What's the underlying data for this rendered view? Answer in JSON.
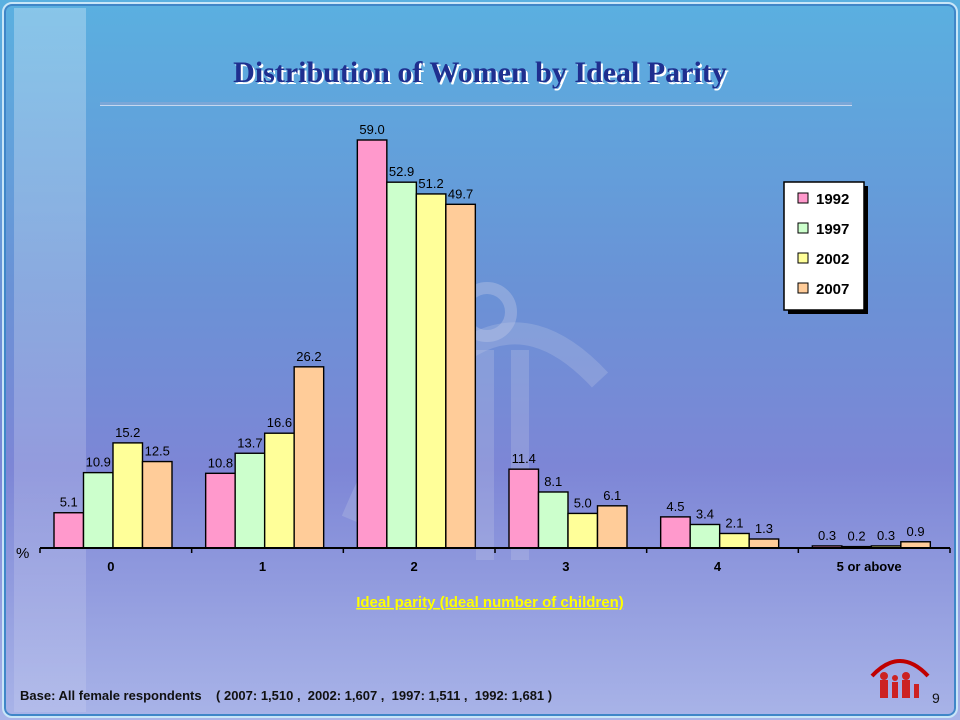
{
  "slide": {
    "title": "Distribution of Women by Ideal Parity",
    "footer": "Base: All female respondents    ( 2007: 1,510 ,  2002: 1,607 ,  1997: 1,511 ,  1992: 1,681 )",
    "page_number": "9"
  },
  "chart_data": {
    "type": "bar",
    "title": "Distribution of Women by Ideal Parity",
    "xlabel": "Ideal parity (Ideal number of children)",
    "ylabel": "%",
    "categories": [
      "0",
      "1",
      "2",
      "3",
      "4",
      "5 or above"
    ],
    "series": [
      {
        "name": "1992",
        "color": "#ff99cc",
        "values": [
          5.1,
          10.8,
          59.0,
          11.4,
          4.5,
          0.3
        ],
        "labels": [
          "5.1",
          "10.8",
          "59.0",
          "11.4",
          "4.5",
          "0.3"
        ]
      },
      {
        "name": "1997",
        "color": "#ccffcc",
        "values": [
          10.9,
          13.7,
          52.9,
          8.1,
          3.4,
          0.2
        ],
        "labels": [
          "10.9",
          "13.7",
          "52.9",
          "8.1",
          "3.4",
          "0.2"
        ]
      },
      {
        "name": "2002",
        "color": "#ffff99",
        "values": [
          15.2,
          16.6,
          51.2,
          5.0,
          2.1,
          0.3
        ],
        "labels": [
          "15.2",
          "16.6",
          "51.2",
          "5.0",
          "2.1",
          "0.3"
        ]
      },
      {
        "name": "2007",
        "color": "#ffcc99",
        "values": [
          12.5,
          26.2,
          49.7,
          6.1,
          1.3,
          0.9
        ],
        "labels": [
          "12.5",
          "26.2",
          "49.7",
          "6.1",
          "1.3",
          "0.9"
        ]
      }
    ],
    "ylim": [
      0,
      59.0
    ],
    "grid": false,
    "legend_position": "top-right",
    "colors": {
      "axis": "#000000",
      "xlabel": "#ffff00",
      "bar_outline": "#000000"
    }
  }
}
